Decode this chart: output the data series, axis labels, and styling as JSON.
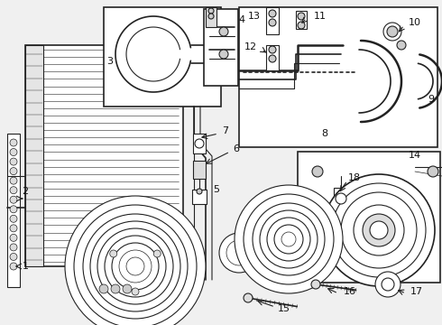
{
  "bg_color": "#f0f0f0",
  "line_color": "#222222",
  "label_color": "#111111",
  "font_size": 8,
  "fig_w": 4.9,
  "fig_h": 3.6,
  "dpi": 100
}
